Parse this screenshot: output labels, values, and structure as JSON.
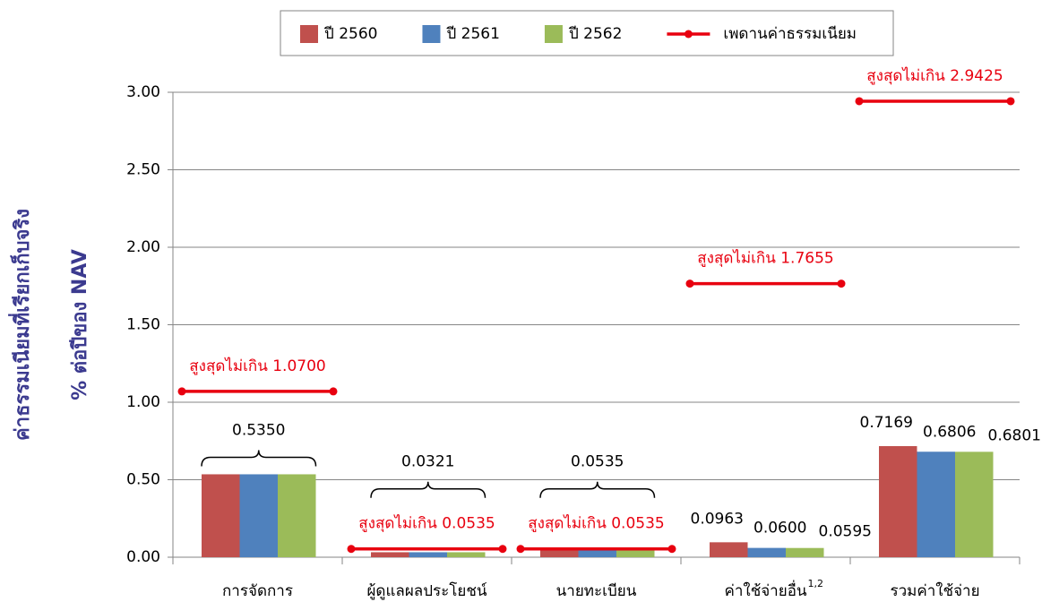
{
  "chart_data": {
    "type": "bar",
    "y_label": [
      "ค่าธรรมเนียมที่เรียกเก็บจริง",
      "% ต่อปีของ NAV"
    ],
    "categories": [
      "การจัดการ",
      "ผู้ดูแลผลประโยชน์",
      "นายทะเบียน",
      "ค่าใช้จ่ายอื่น",
      "รวมค่าใช้จ่าย"
    ],
    "category_superscripts": [
      null,
      null,
      null,
      "1,2",
      null
    ],
    "series": [
      {
        "name": "ปี 2560",
        "color": "#c0504d",
        "values": [
          0.535,
          0.0321,
          0.0535,
          0.0963,
          0.7169
        ],
        "value_labels": [
          null,
          null,
          null,
          "0.0963",
          "0.7169"
        ]
      },
      {
        "name": "ปี 2561",
        "color": "#4f81bd",
        "values": [
          0.535,
          0.0321,
          0.0535,
          0.06,
          0.6806
        ],
        "value_labels": [
          null,
          null,
          null,
          "0.0600",
          "0.6806"
        ]
      },
      {
        "name": "ปี 2562",
        "color": "#9bbb59",
        "values": [
          0.535,
          0.0321,
          0.0535,
          0.0595,
          0.6801
        ],
        "value_labels": [
          null,
          null,
          null,
          "0.0595",
          "0.6801"
        ]
      }
    ],
    "group_labels": [
      "0.5350",
      "0.0321",
      "0.0535",
      null,
      null
    ],
    "ceiling": {
      "name": "เพดานค่าธรรมเนียม",
      "color": "#e8000f",
      "values": [
        1.07,
        0.0535,
        0.0535,
        1.7655,
        2.9425
      ],
      "value_labels": [
        "สูงสุดไม่เกิน 1.0700",
        "สูงสุดไม่เกิน 0.0535",
        "สูงสุดไม่เกิน 0.0535",
        "สูงสุดไม่เกิน 1.7655",
        "สูงสุดไม่เกิน 2.9425"
      ]
    },
    "ylim": [
      0,
      3
    ],
    "yticks": [
      {
        "value": 0,
        "label": "0.00"
      },
      {
        "value": 0.5,
        "label": "0.50"
      },
      {
        "value": 1,
        "label": "1.00"
      },
      {
        "value": 1.5,
        "label": "1.50"
      },
      {
        "value": 2,
        "label": "2.00"
      },
      {
        "value": 2.5,
        "label": "2.50"
      },
      {
        "value": 3,
        "label": "3.00"
      }
    ],
    "grid": true,
    "legend": "top"
  }
}
